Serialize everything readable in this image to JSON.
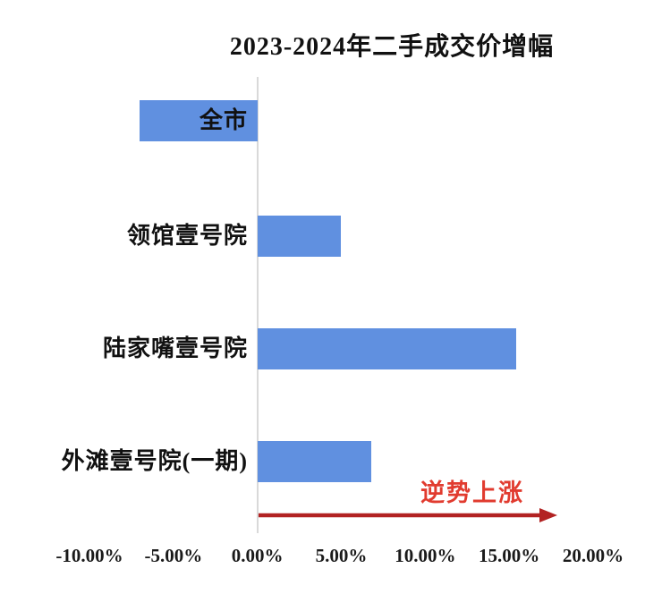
{
  "chart_data": {
    "type": "bar",
    "orientation": "horizontal",
    "title": "2023-2024年二手成交价增幅",
    "categories": [
      "全市",
      "领馆壹号院",
      "陆家嘴壹号院",
      "外滩壹号院(一期)"
    ],
    "values": [
      -7.0,
      5.0,
      15.4,
      6.8
    ],
    "value_unit": "%",
    "xlim": [
      -10,
      20
    ],
    "x_tick_values": [
      -10,
      -5,
      0,
      5,
      10,
      15,
      20
    ],
    "x_tick_labels": [
      "-10.00%",
      "-5.00%",
      "0.00%",
      "5.00%",
      "10.00%",
      "15.00%",
      "20.00%"
    ],
    "grid": false,
    "legend": false,
    "bar_color": "#6090e0",
    "axis_line_color": "#d9d9d9",
    "annotation": {
      "text": "逆势上涨",
      "text_color": "#e13b2f",
      "arrow_color": "#b22222"
    }
  }
}
